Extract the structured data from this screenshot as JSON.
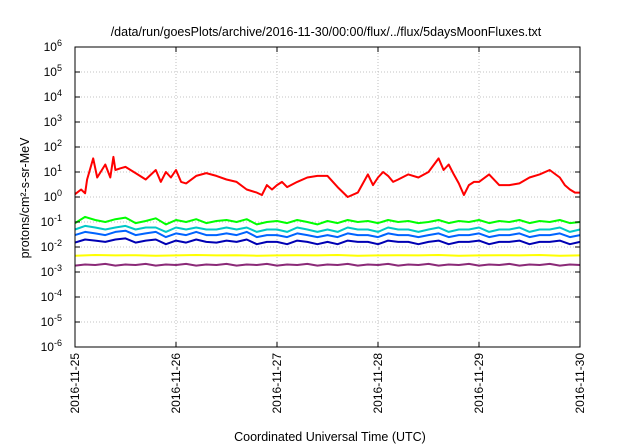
{
  "chart_data": {
    "type": "line",
    "title": "/data/run/goesPlots/archive/2016-11-30/00:00/flux/../flux/5daysMoonFluxes.txt",
    "xlabel": "Coordinated Universal Time (UTC)",
    "ylabel": "protons/cm²-s-sr-MeV",
    "y_scale": "log",
    "ylim_exp": [
      -6,
      6
    ],
    "y_ticks": [
      {
        "base": "10",
        "exp": "-6"
      },
      {
        "base": "10",
        "exp": "-5"
      },
      {
        "base": "10",
        "exp": "-4"
      },
      {
        "base": "10",
        "exp": "-3"
      },
      {
        "base": "10",
        "exp": "-2"
      },
      {
        "base": "10",
        "exp": "-1"
      },
      {
        "base": "10",
        "exp": "0"
      },
      {
        "base": "10",
        "exp": "1"
      },
      {
        "base": "10",
        "exp": "2"
      },
      {
        "base": "10",
        "exp": "3"
      },
      {
        "base": "10",
        "exp": "4"
      },
      {
        "base": "10",
        "exp": "5"
      },
      {
        "base": "10",
        "exp": "6"
      }
    ],
    "x_ticks": [
      "2016-11-25",
      "2016-11-26",
      "2016-11-27",
      "2016-11-28",
      "2016-11-29",
      "2016-11-30"
    ],
    "grid": true,
    "series": [
      {
        "color": "#ff0000",
        "x": [
          0,
          0.06,
          0.1,
          0.12,
          0.18,
          0.22,
          0.3,
          0.35,
          0.38,
          0.4,
          0.45,
          0.5,
          0.6,
          0.7,
          0.8,
          0.85,
          0.9,
          0.95,
          1.0,
          1.05,
          1.1,
          1.2,
          1.3,
          1.4,
          1.5,
          1.6,
          1.7,
          1.8,
          1.85,
          1.9,
          1.95,
          2.0,
          2.05,
          2.1,
          2.2,
          2.3,
          2.4,
          2.5,
          2.6,
          2.7,
          2.8,
          2.9,
          2.95,
          3.0,
          3.05,
          3.1,
          3.15,
          3.2,
          3.3,
          3.4,
          3.5,
          3.6,
          3.65,
          3.7,
          3.75,
          3.8,
          3.85,
          3.9,
          3.95,
          4.0,
          4.1,
          4.2,
          4.3,
          4.4,
          4.5,
          4.6,
          4.7,
          4.8,
          4.85,
          4.9,
          4.95,
          5.0
        ],
        "y": [
          1.3,
          2.0,
          1.4,
          5.0,
          35,
          6,
          20,
          6,
          40,
          12,
          14,
          16,
          9,
          5,
          12,
          4,
          10,
          6,
          12,
          4,
          3.5,
          7,
          9,
          7,
          5,
          4,
          2,
          1.5,
          1.2,
          3,
          2,
          3,
          4,
          2.5,
          4,
          6,
          7,
          7,
          2.5,
          1,
          1.5,
          8,
          3,
          6,
          10,
          7,
          4,
          5,
          8,
          6,
          10,
          35,
          12,
          20,
          8,
          3.5,
          1.2,
          3,
          4,
          4,
          8,
          3,
          3,
          3.5,
          6,
          8,
          12,
          6,
          3,
          2,
          1.5,
          1.5
        ]
      },
      {
        "color": "#00ff00",
        "x": [
          0,
          0.1,
          0.2,
          0.3,
          0.4,
          0.5,
          0.6,
          0.7,
          0.8,
          0.9,
          1.0,
          1.1,
          1.2,
          1.3,
          1.4,
          1.5,
          1.6,
          1.7,
          1.8,
          1.9,
          2.0,
          2.1,
          2.2,
          2.3,
          2.4,
          2.5,
          2.6,
          2.7,
          2.8,
          2.9,
          3.0,
          3.1,
          3.2,
          3.3,
          3.4,
          3.5,
          3.6,
          3.7,
          3.8,
          3.9,
          4.0,
          4.1,
          4.2,
          4.3,
          4.4,
          4.5,
          4.6,
          4.7,
          4.8,
          4.9,
          5.0
        ],
        "y": [
          0.09,
          0.16,
          0.12,
          0.1,
          0.13,
          0.15,
          0.09,
          0.11,
          0.14,
          0.08,
          0.12,
          0.1,
          0.13,
          0.09,
          0.11,
          0.12,
          0.1,
          0.13,
          0.08,
          0.1,
          0.11,
          0.09,
          0.12,
          0.1,
          0.08,
          0.11,
          0.09,
          0.12,
          0.1,
          0.11,
          0.09,
          0.12,
          0.1,
          0.11,
          0.09,
          0.1,
          0.12,
          0.09,
          0.11,
          0.1,
          0.12,
          0.09,
          0.11,
          0.1,
          0.12,
          0.09,
          0.11,
          0.1,
          0.12,
          0.09,
          0.1
        ]
      },
      {
        "color": "#00c8c8",
        "x": [
          0,
          0.1,
          0.2,
          0.3,
          0.4,
          0.5,
          0.6,
          0.7,
          0.8,
          0.9,
          1.0,
          1.1,
          1.2,
          1.3,
          1.4,
          1.5,
          1.6,
          1.7,
          1.8,
          1.9,
          2.0,
          2.1,
          2.2,
          2.3,
          2.4,
          2.5,
          2.6,
          2.7,
          2.8,
          2.9,
          3.0,
          3.1,
          3.2,
          3.3,
          3.4,
          3.5,
          3.6,
          3.7,
          3.8,
          3.9,
          4.0,
          4.1,
          4.2,
          4.3,
          4.4,
          4.5,
          4.6,
          4.7,
          4.8,
          4.9,
          5.0
        ],
        "y": [
          0.05,
          0.07,
          0.06,
          0.05,
          0.06,
          0.07,
          0.05,
          0.06,
          0.06,
          0.04,
          0.06,
          0.05,
          0.06,
          0.05,
          0.05,
          0.06,
          0.05,
          0.06,
          0.04,
          0.05,
          0.05,
          0.04,
          0.06,
          0.05,
          0.04,
          0.05,
          0.04,
          0.06,
          0.05,
          0.05,
          0.04,
          0.06,
          0.05,
          0.05,
          0.04,
          0.05,
          0.06,
          0.04,
          0.05,
          0.05,
          0.06,
          0.04,
          0.05,
          0.05,
          0.06,
          0.04,
          0.05,
          0.05,
          0.06,
          0.04,
          0.05
        ]
      },
      {
        "color": "#0064ff",
        "x": [
          0,
          0.1,
          0.2,
          0.3,
          0.4,
          0.5,
          0.6,
          0.7,
          0.8,
          0.9,
          1.0,
          1.1,
          1.2,
          1.3,
          1.4,
          1.5,
          1.6,
          1.7,
          1.8,
          1.9,
          2.0,
          2.1,
          2.2,
          2.3,
          2.4,
          2.5,
          2.6,
          2.7,
          2.8,
          2.9,
          3.0,
          3.1,
          3.2,
          3.3,
          3.4,
          3.5,
          3.6,
          3.7,
          3.8,
          3.9,
          4.0,
          4.1,
          4.2,
          4.3,
          4.4,
          4.5,
          4.6,
          4.7,
          4.8,
          4.9,
          5.0
        ],
        "y": [
          0.03,
          0.04,
          0.035,
          0.03,
          0.04,
          0.045,
          0.03,
          0.035,
          0.04,
          0.025,
          0.035,
          0.03,
          0.04,
          0.03,
          0.03,
          0.035,
          0.03,
          0.04,
          0.025,
          0.03,
          0.03,
          0.025,
          0.035,
          0.03,
          0.025,
          0.03,
          0.025,
          0.035,
          0.03,
          0.03,
          0.025,
          0.035,
          0.03,
          0.03,
          0.025,
          0.03,
          0.035,
          0.025,
          0.03,
          0.03,
          0.035,
          0.025,
          0.03,
          0.03,
          0.035,
          0.025,
          0.03,
          0.03,
          0.035,
          0.025,
          0.03
        ]
      },
      {
        "color": "#0000b4",
        "x": [
          0,
          0.1,
          0.2,
          0.3,
          0.4,
          0.5,
          0.6,
          0.7,
          0.8,
          0.9,
          1.0,
          1.1,
          1.2,
          1.3,
          1.4,
          1.5,
          1.6,
          1.7,
          1.8,
          1.9,
          2.0,
          2.1,
          2.2,
          2.3,
          2.4,
          2.5,
          2.6,
          2.7,
          2.8,
          2.9,
          3.0,
          3.1,
          3.2,
          3.3,
          3.4,
          3.5,
          3.6,
          3.7,
          3.8,
          3.9,
          4.0,
          4.1,
          4.2,
          4.3,
          4.4,
          4.5,
          4.6,
          4.7,
          4.8,
          4.9,
          5.0
        ],
        "y": [
          0.015,
          0.02,
          0.018,
          0.016,
          0.02,
          0.022,
          0.015,
          0.018,
          0.02,
          0.013,
          0.018,
          0.015,
          0.02,
          0.016,
          0.015,
          0.018,
          0.016,
          0.02,
          0.013,
          0.016,
          0.016,
          0.013,
          0.018,
          0.016,
          0.013,
          0.016,
          0.013,
          0.018,
          0.016,
          0.016,
          0.013,
          0.018,
          0.016,
          0.016,
          0.013,
          0.016,
          0.018,
          0.013,
          0.016,
          0.016,
          0.018,
          0.013,
          0.016,
          0.016,
          0.018,
          0.013,
          0.016,
          0.016,
          0.018,
          0.013,
          0.016
        ]
      },
      {
        "color": "#ffff00",
        "x": [
          0,
          0.2,
          0.4,
          0.6,
          0.8,
          1.0,
          1.2,
          1.4,
          1.6,
          1.8,
          2.0,
          2.2,
          2.4,
          2.6,
          2.8,
          3.0,
          3.2,
          3.4,
          3.6,
          3.8,
          4.0,
          4.2,
          4.4,
          4.6,
          4.8,
          5.0
        ],
        "y": [
          0.0045,
          0.0048,
          0.0046,
          0.0047,
          0.0045,
          0.0046,
          0.0048,
          0.0046,
          0.0047,
          0.0045,
          0.0046,
          0.0047,
          0.0046,
          0.0048,
          0.0045,
          0.0046,
          0.0047,
          0.0046,
          0.0048,
          0.0045,
          0.0046,
          0.0047,
          0.0046,
          0.0048,
          0.0045,
          0.0046
        ]
      },
      {
        "color": "#8b2a78",
        "x": [
          0,
          0.1,
          0.2,
          0.3,
          0.4,
          0.5,
          0.6,
          0.7,
          0.8,
          0.9,
          1.0,
          1.1,
          1.2,
          1.3,
          1.4,
          1.5,
          1.6,
          1.7,
          1.8,
          1.9,
          2.0,
          2.1,
          2.2,
          2.3,
          2.4,
          2.5,
          2.6,
          2.7,
          2.8,
          2.9,
          3.0,
          3.1,
          3.2,
          3.3,
          3.4,
          3.5,
          3.6,
          3.7,
          3.8,
          3.9,
          4.0,
          4.1,
          4.2,
          4.3,
          4.4,
          4.5,
          4.6,
          4.7,
          4.8,
          4.9,
          5.0
        ],
        "y": [
          0.0018,
          0.002,
          0.0019,
          0.0021,
          0.0018,
          0.002,
          0.0019,
          0.0021,
          0.0018,
          0.002,
          0.0019,
          0.0021,
          0.0018,
          0.002,
          0.0019,
          0.0021,
          0.0018,
          0.002,
          0.0019,
          0.0021,
          0.0018,
          0.002,
          0.0019,
          0.0021,
          0.0018,
          0.002,
          0.0019,
          0.0021,
          0.0018,
          0.002,
          0.0019,
          0.0021,
          0.0018,
          0.002,
          0.0019,
          0.0021,
          0.0018,
          0.002,
          0.0019,
          0.0021,
          0.0018,
          0.002,
          0.0019,
          0.0021,
          0.0018,
          0.002,
          0.0019,
          0.0021,
          0.0018,
          0.002,
          0.0019
        ]
      }
    ]
  }
}
